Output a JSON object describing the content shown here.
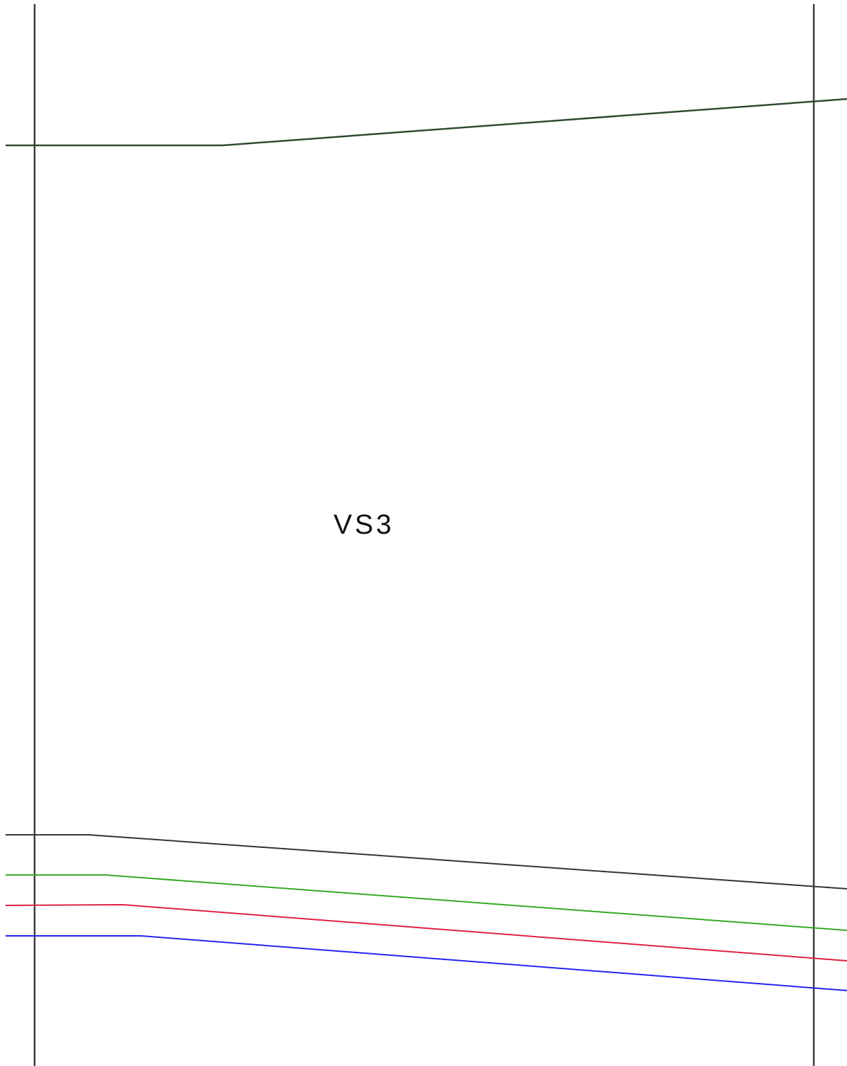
{
  "label": "VS3",
  "lines": [
    {
      "name": "left-gridline",
      "color": "#3a3a3a"
    },
    {
      "name": "right-gridline",
      "color": "#3a3a3a"
    },
    {
      "name": "upper-line",
      "color": "#2f4a2f"
    },
    {
      "name": "black-line",
      "color": "#333333"
    },
    {
      "name": "green-line",
      "color": "#33aa22"
    },
    {
      "name": "red-line",
      "color": "#e02040"
    },
    {
      "name": "blue-line",
      "color": "#2222ee"
    }
  ]
}
